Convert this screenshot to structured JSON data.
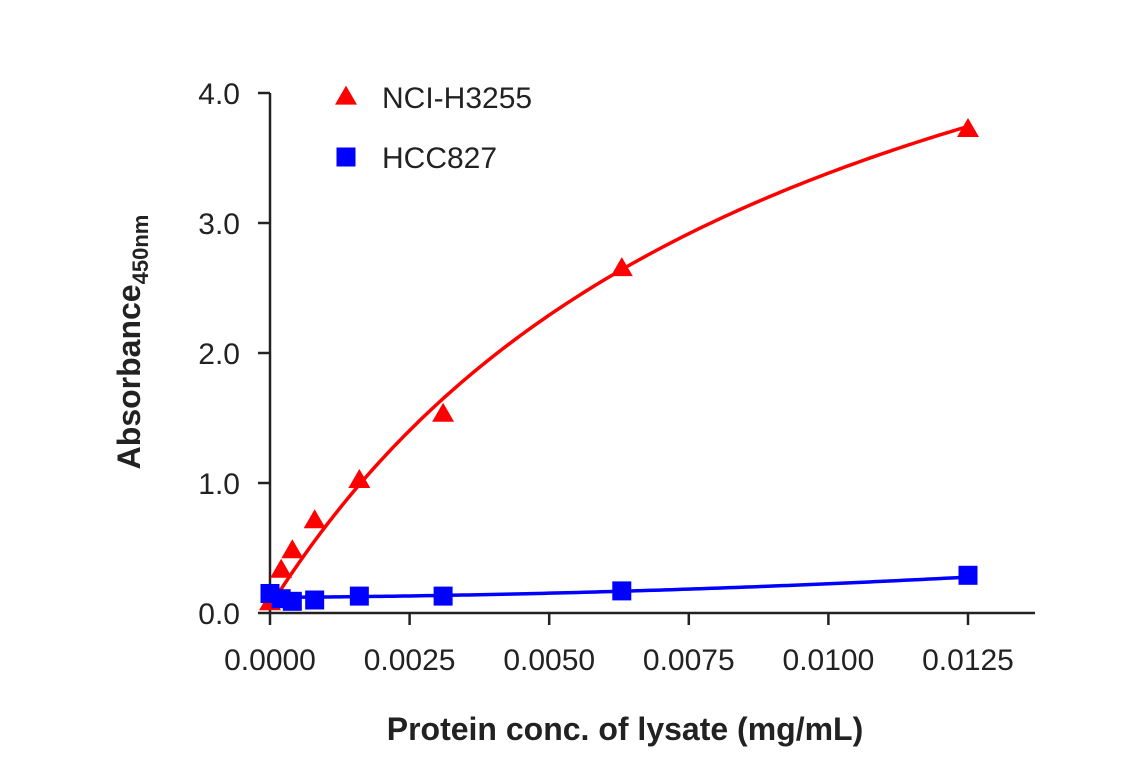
{
  "chart_data": {
    "type": "scatter",
    "title": "",
    "xlabel": "Protein conc. of lysate (mg/mL)",
    "ylabel": {
      "main": "Absorbance",
      "subscript": "450nm"
    },
    "xlim": [
      0,
      0.0137
    ],
    "ylim": [
      0,
      4.0
    ],
    "x_ticks": [
      0.0,
      0.0025,
      0.005,
      0.0075,
      0.01,
      0.0125
    ],
    "x_tick_labels": [
      "0.0000",
      "0.0025",
      "0.0050",
      "0.0075",
      "0.0100",
      "0.0125"
    ],
    "y_ticks": [
      0.0,
      1.0,
      2.0,
      3.0,
      4.0
    ],
    "y_tick_labels": [
      "0.0",
      "1.0",
      "2.0",
      "3.0",
      "4.0"
    ],
    "grid": false,
    "legend_position": "top-left",
    "series": [
      {
        "name": "NCI-H3255",
        "color": "#ff0000",
        "marker": "triangle",
        "x": [
          0.0,
          0.0002,
          0.0004,
          0.0008,
          0.0016,
          0.0031,
          0.0063,
          0.0125
        ],
        "y": [
          0.08,
          0.33,
          0.48,
          0.71,
          1.02,
          1.53,
          2.65,
          3.72
        ],
        "fit_curve": {
          "model": "saturation",
          "a": 6.5,
          "b": 0.0095,
          "c": 0.05
        }
      },
      {
        "name": "HCC827",
        "color": "#0000ff",
        "marker": "square",
        "x": [
          0.0,
          0.0002,
          0.0004,
          0.0008,
          0.0016,
          0.0031,
          0.0063,
          0.0125
        ],
        "y": [
          0.15,
          0.11,
          0.09,
          0.1,
          0.13,
          0.13,
          0.17,
          0.29
        ],
        "fit_curve": {
          "model": "quadratic",
          "c0": 0.12,
          "c1": 2.5,
          "c2": 800
        }
      }
    ]
  }
}
